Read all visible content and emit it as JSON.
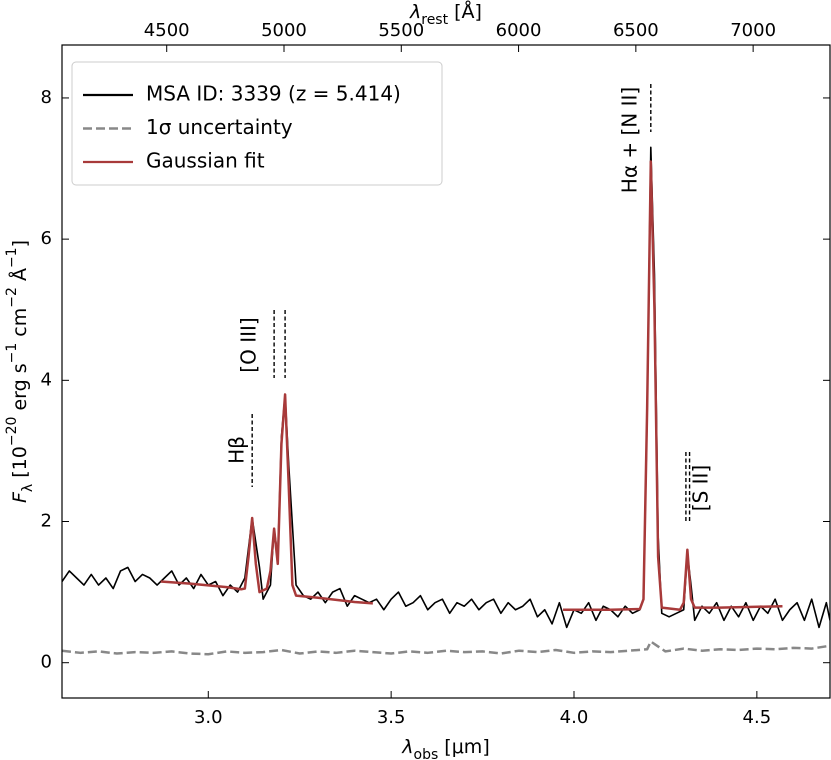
{
  "chart_data": {
    "type": "line",
    "xlabel": [
      {
        "text": "λ"
      },
      {
        "text": "obs",
        "shift": "sub"
      },
      {
        "text": " [μm]"
      }
    ],
    "ylabel": [
      {
        "text": "F"
      },
      {
        "text": "λ",
        "shift": "sub"
      },
      {
        "text": " [10"
      },
      {
        "text": "−20",
        "shift": "sup"
      },
      {
        "text": " erg s"
      },
      {
        "text": "−1",
        "shift": "sup"
      },
      {
        "text": " cm"
      },
      {
        "text": "−2",
        "shift": "sup"
      },
      {
        "text": " Å"
      },
      {
        "text": "−1",
        "shift": "sup"
      },
      {
        "text": "]"
      }
    ],
    "x2label": [
      {
        "text": "λ"
      },
      {
        "text": "rest",
        "shift": "sub"
      },
      {
        "text": " [Å]"
      }
    ],
    "xlim": [
      2.6,
      4.7
    ],
    "xticks": [
      {
        "value": 3.0,
        "label": "3.0"
      },
      3.5,
      {
        "value": 4.0,
        "label": "4.0"
      },
      4.5
    ],
    "x2lim": [
      4053.6,
      7327.7
    ],
    "x2ticks": [
      4500,
      5000,
      5500,
      6000,
      6500,
      7000
    ],
    "ylim": [
      -0.5,
      8.75
    ],
    "yticks": [
      0,
      2,
      4,
      6,
      8
    ],
    "legend": "upper left",
    "series": [
      {
        "name": "MSA ID: 3339 (z = 5.414)",
        "color": "#000000",
        "style": "solid",
        "x": [
          2.6,
          2.62,
          2.64,
          2.66,
          2.68,
          2.7,
          2.72,
          2.74,
          2.76,
          2.78,
          2.8,
          2.82,
          2.84,
          2.86,
          2.88,
          2.9,
          2.92,
          2.94,
          2.96,
          2.98,
          3.0,
          3.02,
          3.04,
          3.06,
          3.08,
          3.1,
          3.12,
          3.14,
          3.15,
          3.17,
          3.18,
          3.19,
          3.2,
          3.21,
          3.22,
          3.24,
          3.26,
          3.28,
          3.3,
          3.32,
          3.34,
          3.36,
          3.38,
          3.4,
          3.42,
          3.44,
          3.46,
          3.48,
          3.5,
          3.52,
          3.54,
          3.56,
          3.58,
          3.6,
          3.62,
          3.64,
          3.66,
          3.68,
          3.7,
          3.72,
          3.74,
          3.76,
          3.78,
          3.8,
          3.82,
          3.84,
          3.86,
          3.88,
          3.9,
          3.92,
          3.94,
          3.96,
          3.98,
          4.0,
          4.02,
          4.04,
          4.06,
          4.08,
          4.1,
          4.12,
          4.14,
          4.16,
          4.18,
          4.19,
          4.2,
          4.21,
          4.22,
          4.23,
          4.24,
          4.26,
          4.28,
          4.3,
          4.31,
          4.32,
          4.33,
          4.35,
          4.37,
          4.39,
          4.41,
          4.43,
          4.45,
          4.47,
          4.49,
          4.51,
          4.53,
          4.55,
          4.57,
          4.59,
          4.61,
          4.63,
          4.65,
          4.67,
          4.69,
          4.7
        ],
        "values": [
          1.15,
          1.3,
          1.2,
          1.1,
          1.25,
          1.1,
          1.2,
          1.05,
          1.3,
          1.35,
          1.15,
          1.25,
          1.2,
          1.1,
          1.2,
          1.3,
          1.1,
          1.2,
          1.05,
          1.25,
          1.1,
          1.15,
          0.95,
          1.1,
          1.0,
          1.2,
          2.05,
          1.35,
          0.9,
          1.1,
          1.9,
          1.5,
          3.2,
          3.8,
          2.8,
          1.1,
          0.95,
          0.9,
          1.0,
          0.85,
          1.0,
          1.05,
          0.8,
          0.95,
          0.9,
          0.85,
          0.9,
          0.75,
          0.9,
          1.0,
          0.8,
          0.85,
          0.95,
          0.75,
          0.85,
          0.9,
          0.7,
          0.85,
          0.8,
          0.9,
          0.75,
          0.85,
          0.9,
          0.7,
          0.85,
          0.75,
          0.8,
          0.9,
          0.65,
          0.75,
          0.55,
          0.85,
          0.5,
          0.75,
          0.7,
          0.85,
          0.6,
          0.8,
          0.75,
          0.65,
          0.8,
          0.7,
          0.75,
          0.9,
          3.5,
          7.3,
          5.5,
          1.8,
          0.7,
          0.65,
          0.7,
          0.75,
          1.55,
          1.1,
          0.6,
          0.8,
          0.7,
          0.85,
          0.6,
          0.8,
          0.65,
          0.85,
          0.6,
          0.8,
          0.7,
          0.9,
          0.6,
          0.75,
          0.85,
          0.6,
          0.9,
          0.5,
          0.85,
          0.6
        ]
      },
      {
        "name": "1σ uncertainty",
        "color": "#888888",
        "style": "dashed",
        "x": [
          2.6,
          2.65,
          2.7,
          2.75,
          2.8,
          2.85,
          2.9,
          2.95,
          3.0,
          3.05,
          3.1,
          3.15,
          3.2,
          3.25,
          3.3,
          3.35,
          3.4,
          3.45,
          3.5,
          3.55,
          3.6,
          3.65,
          3.7,
          3.75,
          3.8,
          3.85,
          3.9,
          3.95,
          4.0,
          4.05,
          4.1,
          4.15,
          4.2,
          4.21,
          4.25,
          4.3,
          4.35,
          4.4,
          4.45,
          4.5,
          4.55,
          4.6,
          4.65,
          4.7
        ],
        "values": [
          0.17,
          0.14,
          0.16,
          0.13,
          0.15,
          0.14,
          0.16,
          0.13,
          0.12,
          0.16,
          0.14,
          0.15,
          0.18,
          0.13,
          0.16,
          0.14,
          0.17,
          0.15,
          0.13,
          0.16,
          0.14,
          0.17,
          0.15,
          0.16,
          0.13,
          0.17,
          0.15,
          0.18,
          0.14,
          0.16,
          0.15,
          0.17,
          0.19,
          0.3,
          0.16,
          0.2,
          0.17,
          0.19,
          0.18,
          0.2,
          0.19,
          0.21,
          0.2,
          0.24
        ]
      },
      {
        "name": "Gaussian fit",
        "color": "#a83a3a",
        "style": "solid",
        "x": [
          2.87,
          2.95,
          3.05,
          3.09,
          3.1,
          3.11,
          3.12,
          3.13,
          3.14,
          3.16,
          3.17,
          3.18,
          3.19,
          3.2,
          3.21,
          3.22,
          3.23,
          3.24,
          3.3,
          3.4,
          3.45,
          3.7,
          3.97,
          4.1,
          4.18,
          4.19,
          4.2,
          4.21,
          4.22,
          4.23,
          4.24,
          4.29,
          4.3,
          4.31,
          4.32,
          4.33,
          4.4,
          4.57
        ],
        "values": [
          1.15,
          1.12,
          1.07,
          1.04,
          1.05,
          1.5,
          2.05,
          1.4,
          1.0,
          1.05,
          1.3,
          1.9,
          1.4,
          3.1,
          3.8,
          2.5,
          1.1,
          0.95,
          0.92,
          0.86,
          0.84,
          null,
          0.75,
          0.75,
          0.76,
          0.9,
          3.6,
          7.1,
          5.0,
          1.5,
          0.78,
          0.75,
          0.85,
          1.6,
          0.9,
          0.78,
          0.78,
          0.8
        ]
      }
    ],
    "annotations": [
      {
        "text": "Hβ",
        "x": [
          3.12
        ]
      },
      {
        "text": "[O III]",
        "x": [
          3.18,
          3.21
        ]
      },
      {
        "text": "Hα + [N II]",
        "x": [
          4.21
        ]
      },
      {
        "text": "[S II]",
        "x": [
          4.306,
          4.316
        ]
      }
    ]
  }
}
